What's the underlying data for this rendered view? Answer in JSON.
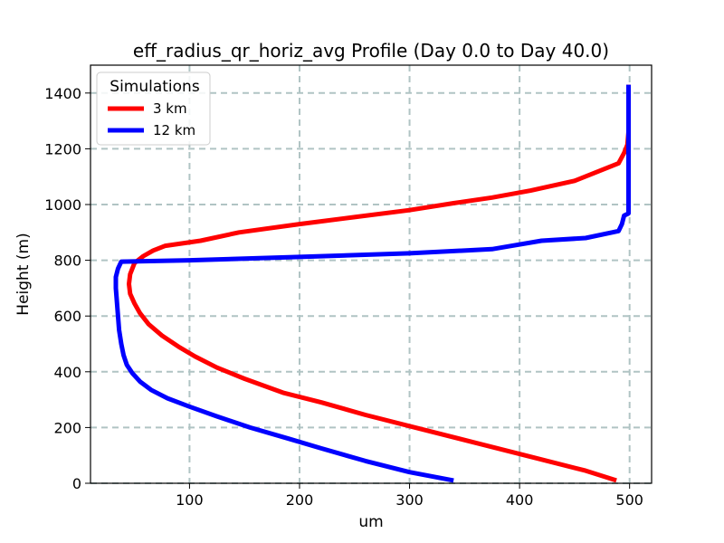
{
  "chart_data": {
    "type": "line",
    "title": "eff_radius_qr_horiz_avg Profile (Day 0.0 to Day 40.0)",
    "xlabel": "um",
    "ylabel": "Height (m)",
    "xlim": [
      10,
      520
    ],
    "ylim": [
      0,
      1500
    ],
    "x_ticks": [
      100,
      200,
      300,
      400,
      500
    ],
    "y_ticks": [
      0,
      200,
      400,
      600,
      800,
      1000,
      1200,
      1400
    ],
    "grid": true,
    "legend": {
      "title": "Simulations",
      "position": "upper-left"
    },
    "series": [
      {
        "name": "3 km",
        "color": "#ff0000",
        "points": [
          [
            488,
            10
          ],
          [
            460,
            45
          ],
          [
            410,
            95
          ],
          [
            360,
            145
          ],
          [
            310,
            195
          ],
          [
            260,
            245
          ],
          [
            220,
            290
          ],
          [
            185,
            325
          ],
          [
            150,
            375
          ],
          [
            125,
            415
          ],
          [
            105,
            455
          ],
          [
            90,
            490
          ],
          [
            75,
            530
          ],
          [
            63,
            570
          ],
          [
            55,
            610
          ],
          [
            50,
            645
          ],
          [
            46,
            680
          ],
          [
            45,
            715
          ],
          [
            46,
            750
          ],
          [
            50,
            790
          ],
          [
            58,
            815
          ],
          [
            67,
            835
          ],
          [
            78,
            852
          ],
          [
            110,
            870
          ],
          [
            145,
            900
          ],
          [
            200,
            930
          ],
          [
            250,
            955
          ],
          [
            300,
            980
          ],
          [
            340,
            1005
          ],
          [
            375,
            1025
          ],
          [
            410,
            1050
          ],
          [
            450,
            1085
          ],
          [
            490,
            1148
          ],
          [
            495,
            1185
          ],
          [
            498,
            1215
          ],
          [
            499,
            1260
          ],
          [
            499,
            1320
          ],
          [
            499,
            1380
          ],
          [
            499,
            1430
          ]
        ]
      },
      {
        "name": "12 km",
        "color": "#0000ff",
        "points": [
          [
            340,
            10
          ],
          [
            300,
            40
          ],
          [
            260,
            80
          ],
          [
            220,
            125
          ],
          [
            190,
            160
          ],
          [
            155,
            200
          ],
          [
            125,
            240
          ],
          [
            100,
            275
          ],
          [
            80,
            305
          ],
          [
            65,
            335
          ],
          [
            55,
            365
          ],
          [
            48,
            395
          ],
          [
            43,
            425
          ],
          [
            40,
            460
          ],
          [
            38,
            500
          ],
          [
            36,
            550
          ],
          [
            35,
            600
          ],
          [
            34,
            650
          ],
          [
            33,
            700
          ],
          [
            33,
            740
          ],
          [
            35,
            770
          ],
          [
            38,
            795
          ],
          [
            100,
            800
          ],
          [
            200,
            812
          ],
          [
            300,
            825
          ],
          [
            375,
            840
          ],
          [
            390,
            850
          ],
          [
            420,
            870
          ],
          [
            460,
            880
          ],
          [
            490,
            905
          ],
          [
            493,
            930
          ],
          [
            495,
            960
          ],
          [
            499,
            968
          ],
          [
            499,
            1000
          ],
          [
            499,
            1100
          ],
          [
            499,
            1200
          ],
          [
            499,
            1300
          ],
          [
            499,
            1430
          ]
        ]
      }
    ]
  }
}
